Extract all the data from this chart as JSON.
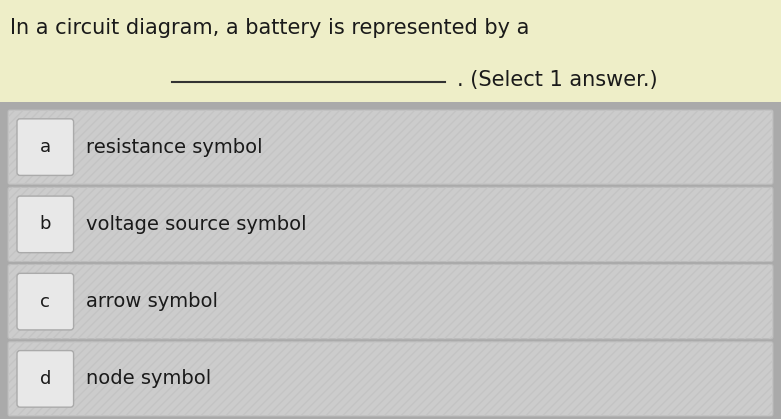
{
  "question_line1": "In a circuit diagram, a battery is represented by a",
  "question_line2": ". (Select 1 answer.)",
  "question_blank": "                    ",
  "question_bg": "#eeeec8",
  "options": [
    {
      "label": "a",
      "text": "resistance symbol"
    },
    {
      "label": "b",
      "text": "voltage source symbol"
    },
    {
      "label": "c",
      "text": "arrow symbol"
    },
    {
      "label": "d",
      "text": "node symbol"
    }
  ],
  "option_bg": "#cccccc",
  "option_stripe_color": "#c4c4c4",
  "label_bg": "#e8e8e8",
  "label_border": "#aaaaaa",
  "overall_bg": "#aaaaaa",
  "text_color": "#1a1a1a",
  "question_text_color": "#1a1a1a",
  "underline_color": "#333333",
  "fig_width": 7.81,
  "fig_height": 4.19,
  "dpi": 100
}
